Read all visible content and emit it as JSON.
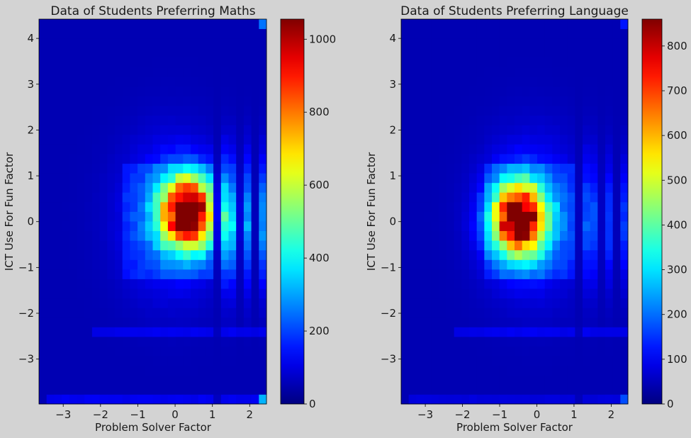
{
  "figure": {
    "background": "#d3d3d3",
    "colormap": "jet"
  },
  "chart_data": [
    {
      "type": "heatmap",
      "title": "Data of Students Preferring Maths",
      "xlabel": "Problem Solver Factor",
      "ylabel": "ICT Use For Fun Factor",
      "xlim": [
        -3.65,
        2.45
      ],
      "ylim": [
        -3.98,
        4.42
      ],
      "xticks": [
        "−3",
        "−2",
        "−1",
        "0",
        "1",
        "2"
      ],
      "xtick_values": [
        -3,
        -2,
        -1,
        0,
        1,
        2
      ],
      "yticks": [
        "−3",
        "−2",
        "−1",
        "0",
        "1",
        "2",
        "3",
        "4"
      ],
      "ytick_values": [
        -3,
        -2,
        -1,
        0,
        1,
        2,
        3,
        4
      ],
      "colorbar": {
        "min": 0,
        "max": 1055,
        "ticks": [
          "0",
          "200",
          "400",
          "600",
          "800",
          "1000"
        ],
        "tick_values": [
          0,
          200,
          400,
          600,
          800,
          1000
        ]
      },
      "bins": {
        "nx": 30,
        "ny": 40
      },
      "grid": false,
      "peak": {
        "x": 0.35,
        "y": 0.2,
        "value": 1055
      }
    },
    {
      "type": "heatmap",
      "title": "Data of Students Preferring Language",
      "xlabel": "Problem Solver Factor",
      "ylabel": "ICT Use For Fun Factor",
      "xlim": [
        -3.65,
        2.45
      ],
      "ylim": [
        -3.98,
        4.42
      ],
      "xticks": [
        "−3",
        "−2",
        "−1",
        "0",
        "1",
        "2"
      ],
      "xtick_values": [
        -3,
        -2,
        -1,
        0,
        1,
        2
      ],
      "yticks": [
        "−3",
        "−2",
        "−1",
        "0",
        "1",
        "2",
        "3",
        "4"
      ],
      "ytick_values": [
        -3,
        -2,
        -1,
        0,
        1,
        2,
        3,
        4
      ],
      "colorbar": {
        "min": 0,
        "max": 860,
        "ticks": [
          "0",
          "100",
          "200",
          "300",
          "400",
          "500",
          "600",
          "700",
          "800"
        ],
        "tick_values": [
          0,
          100,
          200,
          300,
          400,
          500,
          600,
          700,
          800
        ]
      },
      "bins": {
        "nx": 30,
        "ny": 40
      },
      "grid": false,
      "peak": {
        "x": -0.5,
        "y": 0.05,
        "value": 860
      }
    }
  ]
}
